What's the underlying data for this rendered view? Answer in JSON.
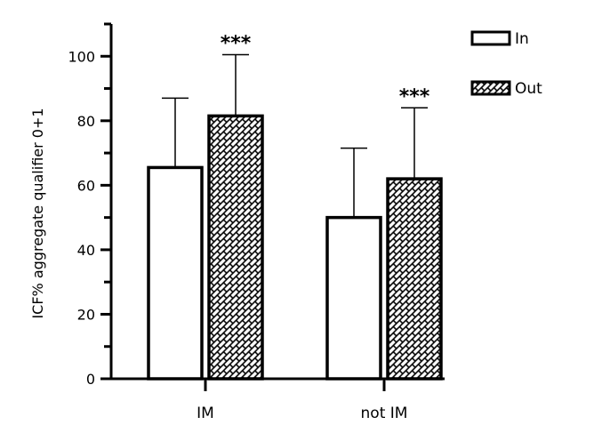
{
  "chart_data": {
    "type": "bar",
    "title": "",
    "ylabel": "ICF% aggregate qualifier 0+1",
    "xlabel": "",
    "categories": [
      "IM",
      "not IM"
    ],
    "ylim": [
      0,
      110
    ],
    "yticks": [
      0,
      20,
      40,
      60,
      80,
      100
    ],
    "series": [
      {
        "name": "In",
        "values": [
          65.5,
          50.0
        ],
        "errors": [
          21.5,
          21.5
        ],
        "fill": "plain"
      },
      {
        "name": "Out",
        "values": [
          81.5,
          62.0
        ],
        "errors": [
          19.0,
          22.0
        ],
        "fill": "brick-hatch"
      }
    ],
    "annotations": [
      {
        "text": "***",
        "category": "IM",
        "series": "Out"
      },
      {
        "text": "***",
        "category": "not IM",
        "series": "Out"
      }
    ],
    "legend_position": "top-right",
    "grid": false,
    "colors": {
      "stroke": "#000000",
      "fill": "#ffffff"
    }
  }
}
